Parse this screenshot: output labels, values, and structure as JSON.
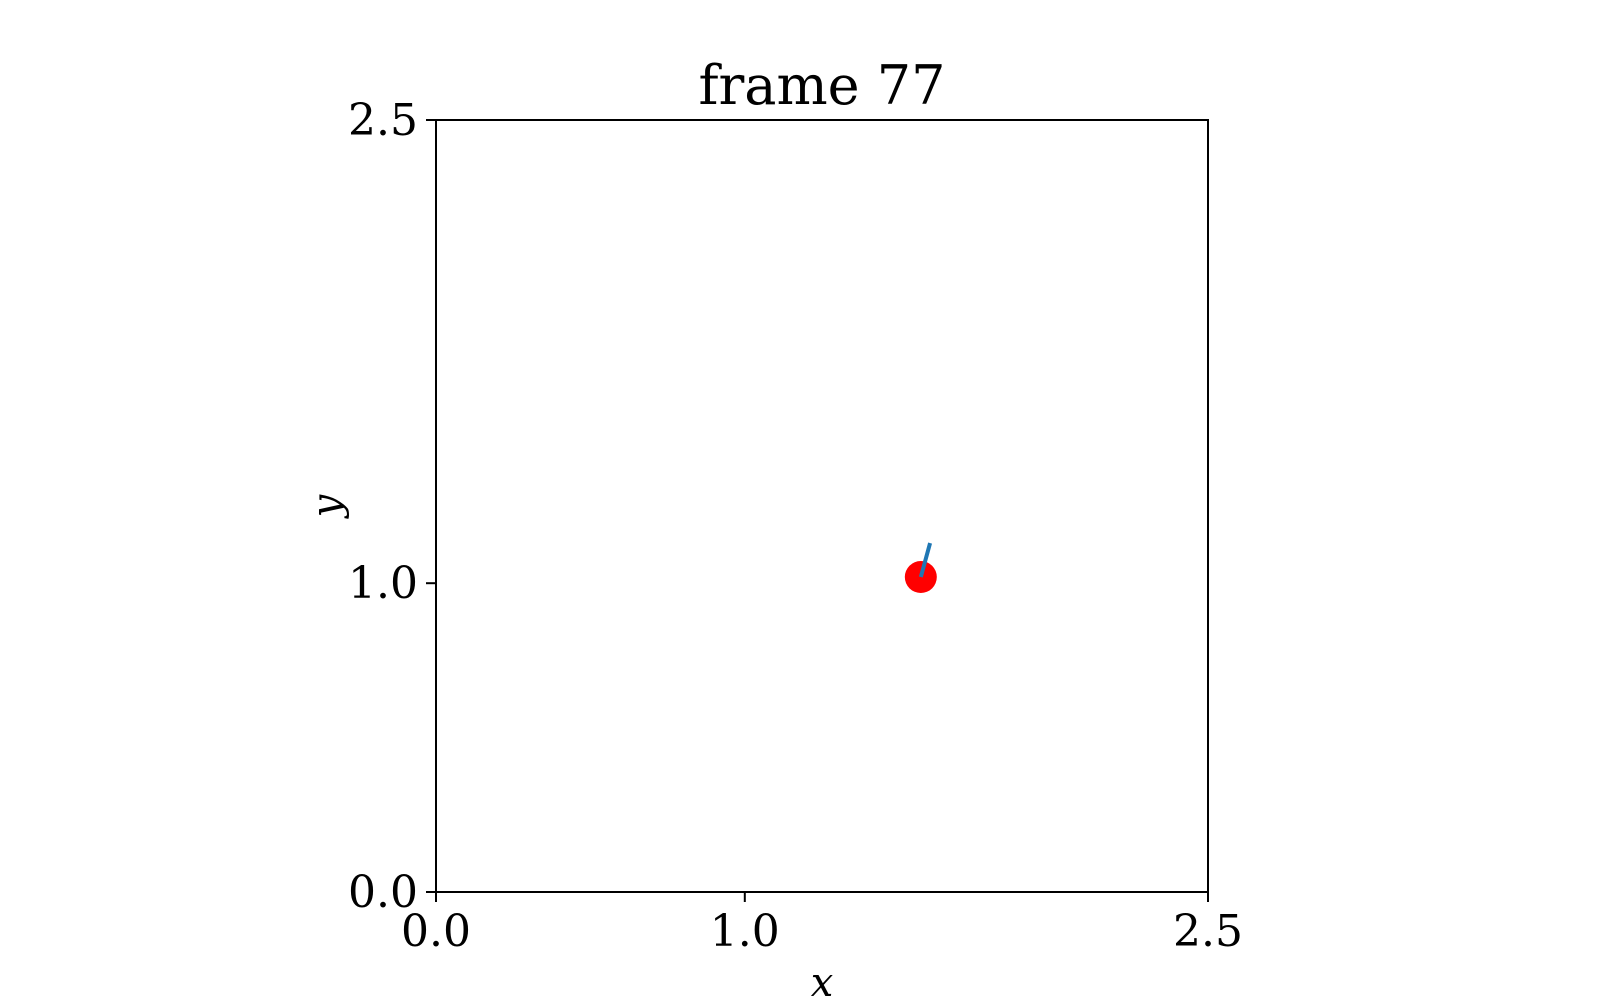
{
  "chart_data": {
    "type": "scatter",
    "title": "frame 77",
    "xlabel": "x",
    "ylabel": "y",
    "xlim": [
      0.0,
      2.5
    ],
    "ylim": [
      0.0,
      2.5
    ],
    "grid": false,
    "xticks": [
      {
        "value": 0.0,
        "label": "0.0"
      },
      {
        "value": 1.0,
        "label": "1.0"
      },
      {
        "value": 2.5,
        "label": "2.5"
      }
    ],
    "yticks": [
      {
        "value": 0.0,
        "label": "0.0"
      },
      {
        "value": 1.0,
        "label": "1.0"
      },
      {
        "value": 2.5,
        "label": "2.5"
      }
    ],
    "point": {
      "x": 1.57,
      "y": 1.02,
      "color": "#ff0000"
    },
    "segment": {
      "x": [
        1.57,
        1.6
      ],
      "y": [
        1.02,
        1.13
      ],
      "color": "#1f77b4"
    }
  }
}
